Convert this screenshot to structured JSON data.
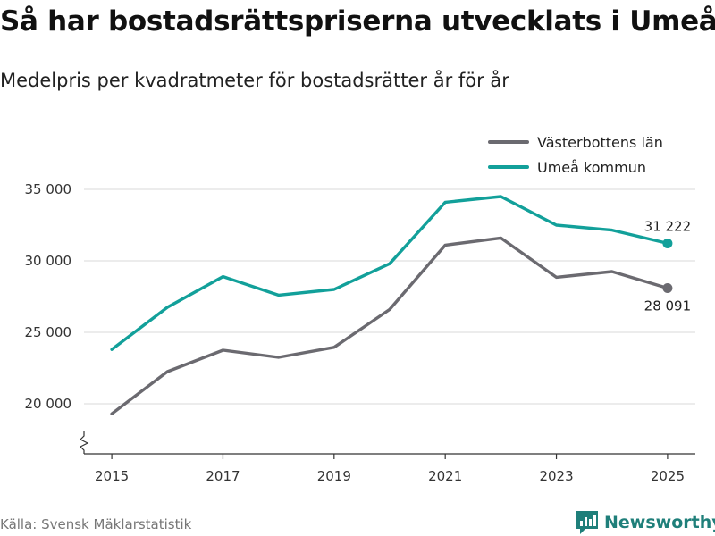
{
  "chart_data": {
    "type": "line",
    "title": "Så har bostadsrättspriserna utvecklats i Umeå",
    "subtitle": "Medelpris per kvadratmeter för bostadsrätter år för år",
    "xlabel": "",
    "ylabel": "",
    "x": [
      2015,
      2016,
      2017,
      2018,
      2019,
      2020,
      2021,
      2022,
      2023,
      2024,
      2025
    ],
    "x_tick_values": [
      2015,
      2017,
      2019,
      2021,
      2023,
      2025
    ],
    "x_tick_labels": [
      "2015",
      "2017",
      "2019",
      "2021",
      "2023",
      "2025"
    ],
    "xlim": [
      2014.5,
      2025.5
    ],
    "ylim": [
      16500,
      36500
    ],
    "y_tick_values": [
      20000,
      25000,
      30000,
      35000
    ],
    "y_tick_labels": [
      "20 000",
      "25 000",
      "30 000",
      "35 000"
    ],
    "axis_break": true,
    "grid": true,
    "legend_position": "top-right",
    "series": [
      {
        "name": "Västerbottens län",
        "color": "#6b6a70",
        "values": [
          19300,
          22250,
          23750,
          23250,
          23950,
          26600,
          31100,
          31600,
          28850,
          29250,
          28091
        ],
        "end_label": "28 091",
        "end_label_position": "below"
      },
      {
        "name": "Umeå kommun",
        "color": "#12a09a",
        "values": [
          23800,
          26750,
          28900,
          27600,
          28000,
          29800,
          34100,
          34500,
          32500,
          32150,
          31222
        ],
        "end_label": "31 222",
        "end_label_position": "above"
      }
    ]
  },
  "footer": {
    "source": "Källa: Svensk Mäklarstatistik",
    "brand": "Newsworthy",
    "brand_color": "#1f7f7a"
  }
}
